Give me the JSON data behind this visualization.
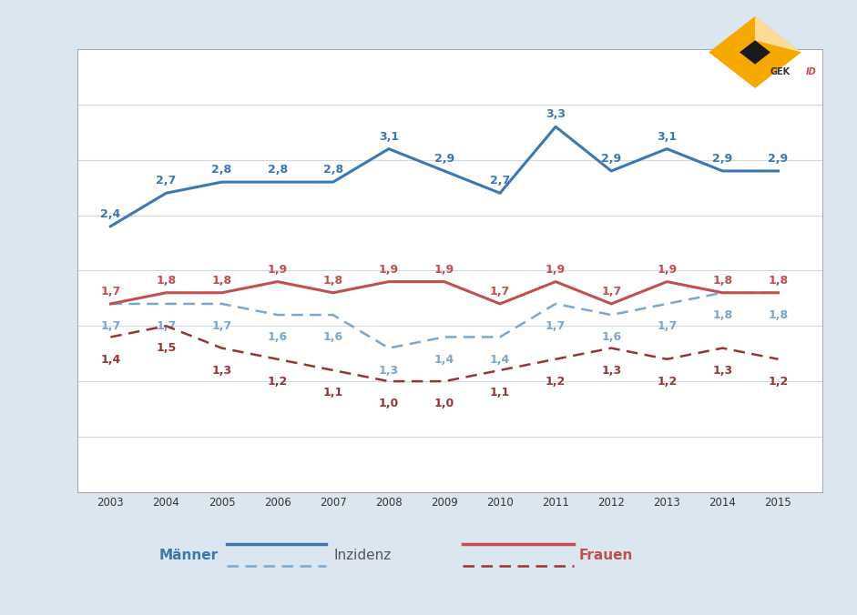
{
  "years": [
    2003,
    2004,
    2005,
    2006,
    2007,
    2008,
    2009,
    2010,
    2011,
    2012,
    2013,
    2014,
    2015
  ],
  "maenner_inzidenz": [
    2.4,
    2.7,
    2.8,
    2.8,
    2.8,
    3.1,
    2.9,
    2.7,
    3.3,
    2.9,
    3.1,
    2.9,
    2.9
  ],
  "maenner_mortalitaet": [
    1.7,
    1.7,
    1.7,
    1.6,
    1.6,
    1.3,
    1.4,
    1.4,
    1.7,
    1.6,
    1.7,
    1.8,
    1.8
  ],
  "frauen_inzidenz": [
    1.7,
    1.8,
    1.8,
    1.9,
    1.8,
    1.9,
    1.9,
    1.7,
    1.9,
    1.7,
    1.9,
    1.8,
    1.8
  ],
  "frauen_mortalitaet": [
    1.4,
    1.5,
    1.3,
    1.2,
    1.1,
    1.0,
    1.0,
    1.1,
    1.2,
    1.3,
    1.2,
    1.3,
    1.2
  ],
  "maenner_inzidenz_labels": [
    "2,4",
    "2,7",
    "2,8",
    "2,8",
    "2,8",
    "3,1",
    "2,9",
    "2,7",
    "3,3",
    "2,9",
    "3,1",
    "2,9",
    "2,9"
  ],
  "maenner_mortalitaet_labels": [
    "1,7",
    "1,7",
    "1,7",
    "1,6",
    "1,6",
    "1,3",
    "1,4",
    "1,4",
    "1,7",
    "1,6",
    "1,7",
    "1,8",
    "1,8"
  ],
  "frauen_inzidenz_labels": [
    "1,7",
    "1,8",
    "1,8",
    "1,9",
    "1,8",
    "1,9",
    "1,9",
    "1,7",
    "1,9",
    "1,7",
    "1,9",
    "1,8",
    "1,8"
  ],
  "frauen_mortalitaet_labels": [
    "1,4",
    "1,5",
    "1,3",
    "1,2",
    "1,1",
    "1,0",
    "1,0",
    "1,1",
    "1,2",
    "1,3",
    "1,2",
    "1,3",
    "1,2"
  ],
  "color_blue": "#3b78b0",
  "color_red": "#c0504d",
  "color_dashed_blue": "#7aa7cc",
  "color_dashed_red": "#943634",
  "background": "#dce6f1",
  "plot_bg": "#ffffff",
  "border_color": "#4f81bd",
  "ylim": [
    0.0,
    4.0
  ],
  "yticks": [
    0.5,
    1.0,
    1.5,
    2.0,
    2.5,
    3.0,
    3.5
  ],
  "grid_color": "#d0d8e4",
  "legend_maenner": "Männer",
  "legend_frauen": "Frauen",
  "legend_inzidenz": "Inzidenz"
}
